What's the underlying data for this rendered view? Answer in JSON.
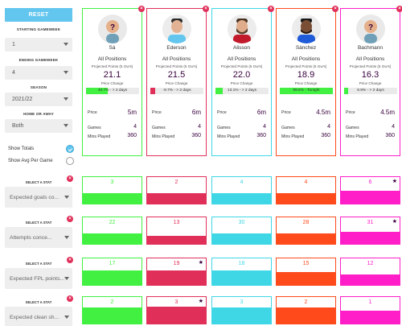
{
  "sidebar": {
    "reset_label": "RESET",
    "starting_gameweek_label": "STARTING GAMEWEEK",
    "starting_gameweek_value": "1",
    "ending_gameweek_label": "ENDING GAMEWEEK",
    "ending_gameweek_value": "4",
    "season_label": "SEASON",
    "season_value": "2021/22",
    "home_away_label": "HOME OR AWAY",
    "home_away_value": "Both",
    "show_totals_label": "Show Totals",
    "show_totals_checked": true,
    "show_avg_label": "Show Avg Per Game",
    "show_avg_checked": false
  },
  "card_labels": {
    "projected": "Projected Points (5 Gw's)",
    "price_change": "Price Change",
    "price": "Price",
    "games": "Games",
    "mins": "Mins Played"
  },
  "players": [
    {
      "name": "Sá",
      "position": "All Positions",
      "projected": "21.1",
      "change_text": "40.7% - > 2 days",
      "change_pct": 40.7,
      "change_color": "#41f041",
      "price": "5m",
      "games": "4",
      "mins": "360",
      "border": "#41f041",
      "avatar": "placeholder"
    },
    {
      "name": "Ederson",
      "position": "All Positions",
      "projected": "21.5",
      "change_text": "-9.7% - > 2 days",
      "change_pct": 9.7,
      "change_color": "#e0305a",
      "price": "6m",
      "games": "4",
      "mins": "360",
      "border": "#e0305a",
      "avatar": "photo-light"
    },
    {
      "name": "Alisson",
      "position": "All Positions",
      "projected": "22.0",
      "change_text": "13.1% - > 2 days",
      "change_pct": 13.1,
      "change_color": "#41f041",
      "price": "6m",
      "games": "4",
      "mins": "360",
      "border": "#3fd7e6",
      "avatar": "photo-beard"
    },
    {
      "name": "Sánchez",
      "position": "All Positions",
      "projected": "18.9",
      "change_text": "99.6% - Tonight",
      "change_pct": 99.6,
      "change_color": "#41f041",
      "price": "4.5m",
      "games": "4",
      "mins": "360",
      "border": "#ff4a1c",
      "avatar": "photo-dark"
    },
    {
      "name": "Bachmann",
      "position": "All Positions",
      "projected": "16.3",
      "change_text": "6.9% - > 2 days",
      "change_pct": 6.9,
      "change_color": "#41f041",
      "price": "4.5m",
      "games": "4",
      "mins": "360",
      "border": "#ff1ec8",
      "avatar": "placeholder"
    }
  ],
  "stat_rows": [
    {
      "label": "SELECT A STAT",
      "stat": "Expected goals co...",
      "values": [
        "3",
        "2",
        "4",
        "4",
        "6"
      ],
      "bars": [
        0.4,
        0.4,
        0.4,
        0.4,
        0.5
      ],
      "star": 4
    },
    {
      "label": "SELECT A STAT",
      "stat": "Attempts conce...",
      "values": [
        "22",
        "13",
        "30",
        "28",
        "31"
      ],
      "bars": [
        0.4,
        0.3,
        0.4,
        0.4,
        0.45
      ],
      "star": 4
    },
    {
      "label": "SELECT A STAT",
      "stat": "Expected FPL points...",
      "values": [
        "17",
        "19",
        "18",
        "15",
        "12"
      ],
      "bars": [
        0.55,
        0.55,
        0.55,
        0.5,
        0.4
      ],
      "star": 1
    },
    {
      "label": "SELECT A STAT",
      "stat": "Expected clean sh...",
      "values": [
        "2",
        "3",
        "3",
        "2",
        "1"
      ],
      "bars": [
        0.6,
        0.65,
        0.6,
        0.6,
        0.5
      ],
      "star": 1
    }
  ],
  "colors": {
    "green": "#41f041",
    "red": "#e0305a",
    "cyan": "#3fd7e6",
    "orange": "#ff4a1c",
    "pink": "#ff1ec8",
    "accent": "#63c6ef"
  },
  "icons": {
    "remove": "×",
    "star": "★"
  }
}
